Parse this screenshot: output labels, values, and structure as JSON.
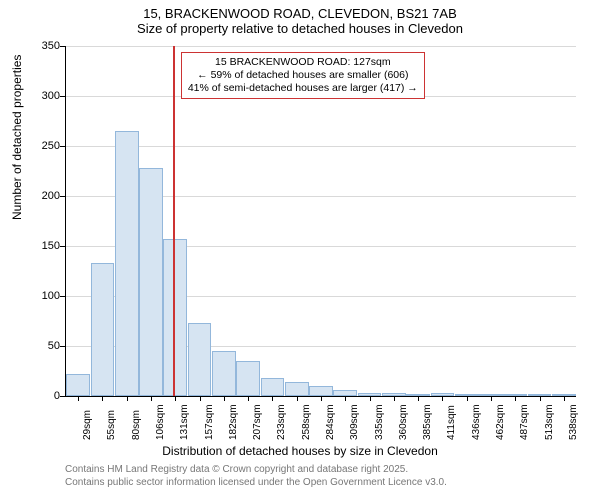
{
  "titles": {
    "line1": "15, BRACKENWOOD ROAD, CLEVEDON, BS21 7AB",
    "line2": "Size of property relative to detached houses in Clevedon"
  },
  "chart": {
    "type": "histogram",
    "ylabel": "Number of detached properties",
    "xlabel": "Distribution of detached houses by size in Clevedon",
    "ylim": [
      0,
      350
    ],
    "ytick_step": 50,
    "categories": [
      "29sqm",
      "55sqm",
      "80sqm",
      "106sqm",
      "131sqm",
      "157sqm",
      "182sqm",
      "207sqm",
      "233sqm",
      "258sqm",
      "284sqm",
      "309sqm",
      "335sqm",
      "360sqm",
      "385sqm",
      "411sqm",
      "436sqm",
      "462sqm",
      "487sqm",
      "513sqm",
      "538sqm"
    ],
    "values": [
      22,
      133,
      265,
      228,
      157,
      73,
      45,
      35,
      18,
      14,
      10,
      6,
      3,
      3,
      2,
      3,
      1,
      0,
      1,
      1,
      0
    ],
    "bar_fill": "#d6e4f2",
    "bar_border": "#93b7db",
    "grid_color": "#d9d9d9",
    "background_color": "#ffffff",
    "marker": {
      "position_index": 3.9,
      "color": "#cc3333"
    },
    "annotation": {
      "line1": "15 BRACKENWOOD ROAD: 127sqm",
      "line2": "← 59% of detached houses are smaller (606)",
      "line3": "41% of semi-detached houses are larger (417) →",
      "border_color": "#cc3333"
    }
  },
  "footer": {
    "line1": "Contains HM Land Registry data © Crown copyright and database right 2025.",
    "line2": "Contains public sector information licensed under the Open Government Licence v3.0."
  }
}
